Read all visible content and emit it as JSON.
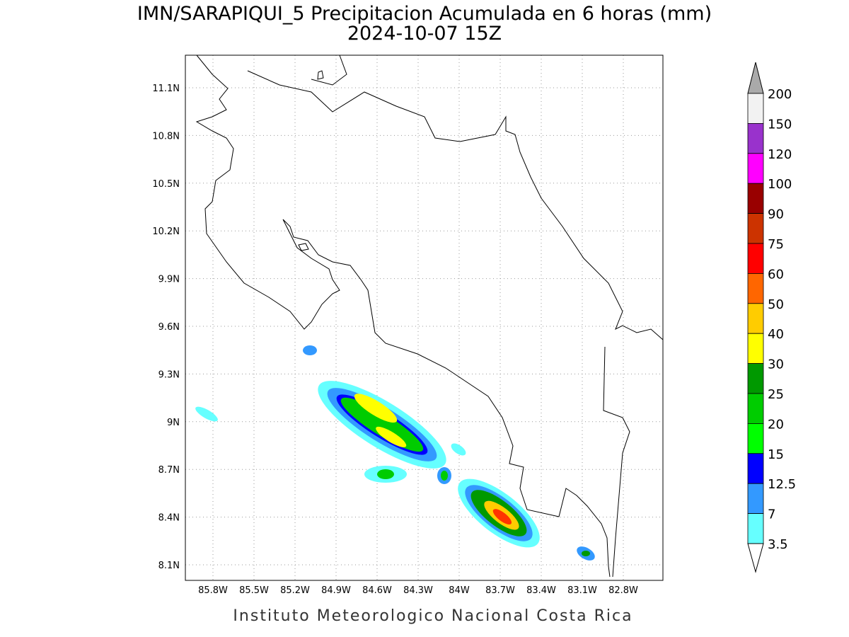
{
  "title": "IMN/SARAPIQUI_5 Precipitacion Acumulada en 6 horas (mm)",
  "subtitle": "2024-10-07 15Z",
  "map": {
    "x_ticks": [
      "85.8W",
      "85.5W",
      "85.2W",
      "84.9W",
      "84.6W",
      "84.3W",
      "84W",
      "83.7W",
      "83.4W",
      "83.1W",
      "82.8W"
    ],
    "y_ticks": [
      "11.1N",
      "10.8N",
      "10.5N",
      "10.2N",
      "9.9N",
      "9.6N",
      "9.3N",
      "9N",
      "8.7N",
      "8.4N",
      "8.1N"
    ]
  },
  "colorbar": {
    "levels": [
      200,
      150,
      120,
      100,
      90,
      75,
      60,
      50,
      40,
      30,
      25,
      20,
      15,
      12.5,
      7,
      3.5
    ],
    "colors": [
      "#f2f2f2",
      "#9932cc",
      "#ff00ff",
      "#990000",
      "#cc3300",
      "#ff0000",
      "#ff6600",
      "#ffcc00",
      "#ffff00",
      "#009900",
      "#00cc00",
      "#00ff00",
      "#0000ff",
      "#3399ff",
      "#66ffff"
    ],
    "above_color": "#aaaaaa",
    "below_color": "#ffffff"
  },
  "footer": "Instituto Meteorologico Nacional Costa Rica"
}
